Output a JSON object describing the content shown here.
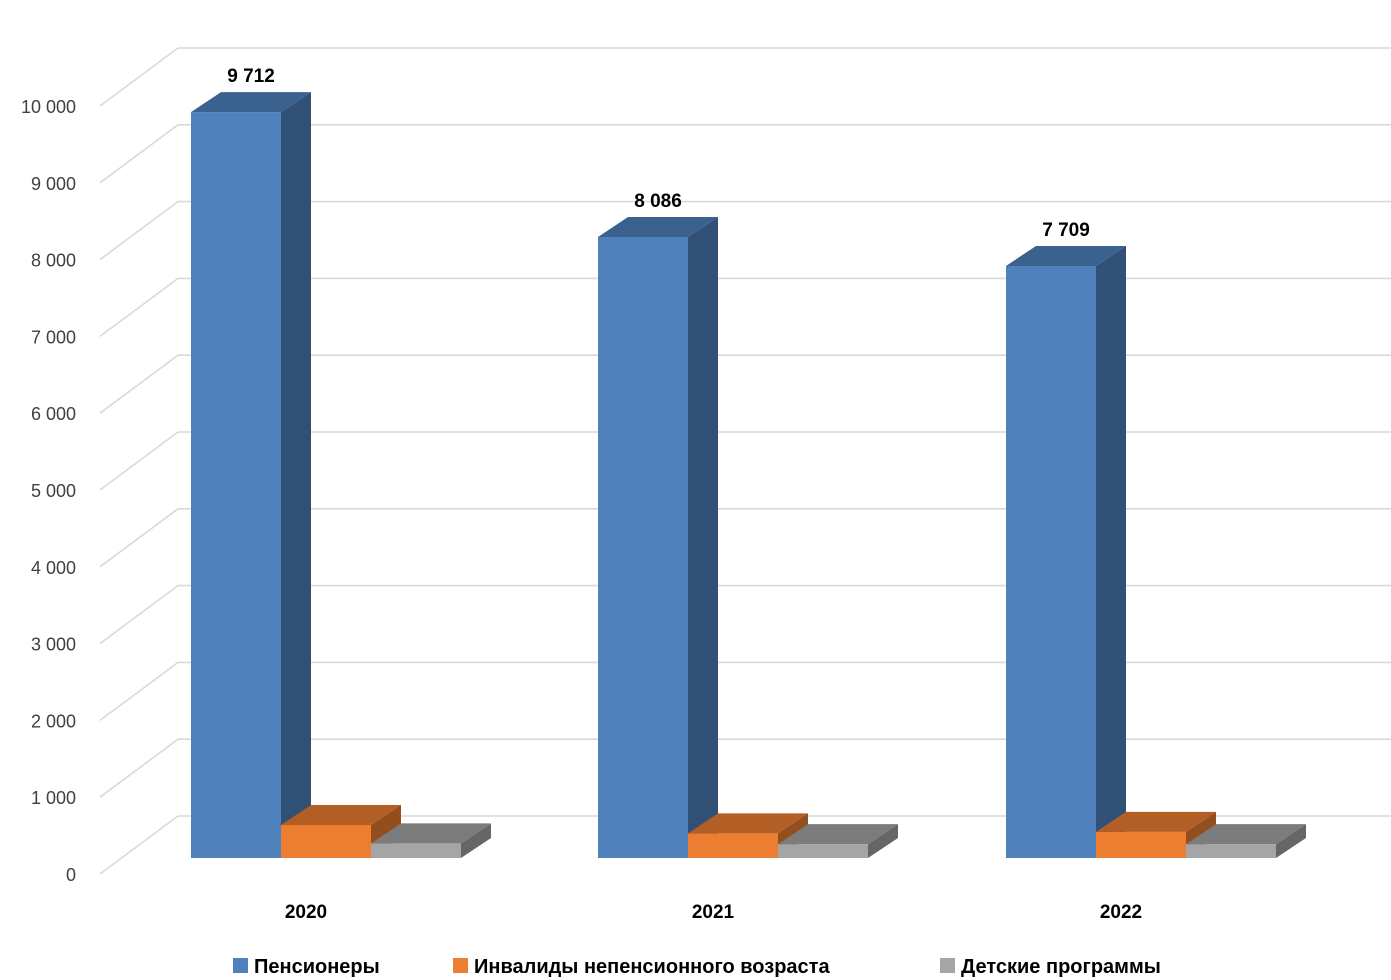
{
  "chart_data": {
    "type": "bar",
    "style": "3d-clustered-column",
    "categories": [
      "2020",
      "2021",
      "2022"
    ],
    "series": [
      {
        "name": "Пенсионеры",
        "color": "#4F81BD",
        "values": [
          9712,
          8086,
          7709
        ],
        "data_labels": [
          "9 712",
          "8 086",
          "7 709"
        ]
      },
      {
        "name": "Инвалиды непенсионного возраста",
        "color": "#ED7D31",
        "values": [
          430,
          320,
          340
        ]
      },
      {
        "name": "Детские программы",
        "color": "#A5A5A5",
        "values": [
          190,
          180,
          180
        ]
      }
    ],
    "y_ticks": [
      "0",
      "1 000",
      "2 000",
      "3 000",
      "4 000",
      "5 000",
      "6 000",
      "7 000",
      "8 000",
      "9 000",
      "10 000"
    ],
    "ylim": [
      0,
      10000
    ],
    "grid": true,
    "legend_position": "bottom"
  }
}
